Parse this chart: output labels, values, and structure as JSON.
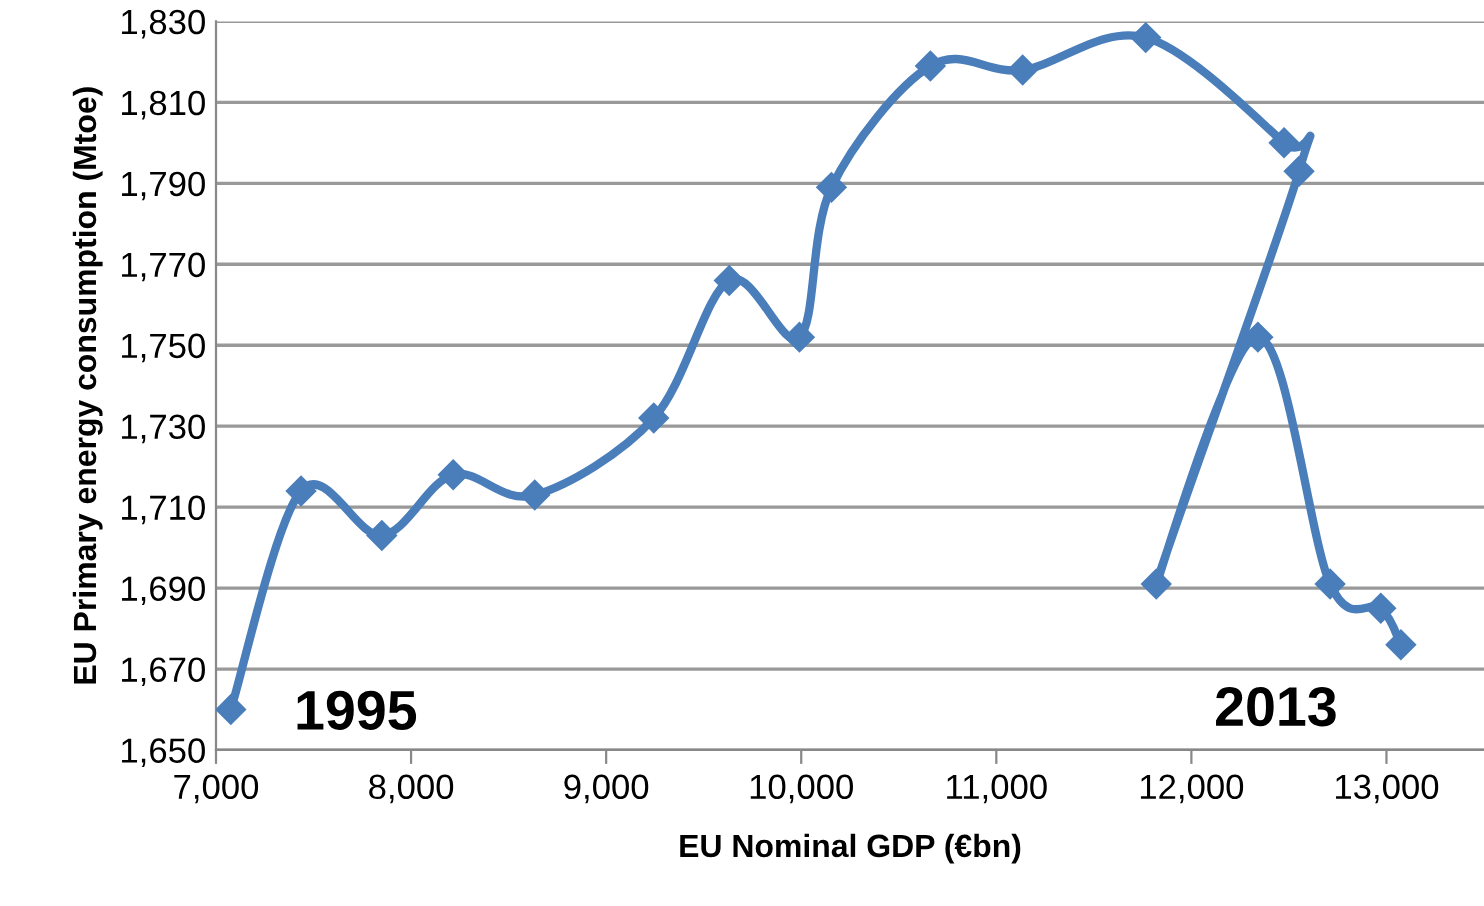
{
  "chart_data": {
    "type": "line",
    "xlabel": "EU Nominal GDP (€bn)",
    "ylabel": "EU Primary energy consumption (Mtoe)",
    "series": [
      {
        "color": "#4a7ebb",
        "x": [
          7076,
          7436,
          7850,
          8216,
          8634,
          9244,
          9631,
          9991,
          10155,
          10662,
          11135,
          11766,
          12475,
          12552,
          11820,
          12341,
          12711,
          12971,
          13074
        ],
        "values": [
          1660,
          1714,
          1703,
          1718,
          1713,
          1732,
          1766,
          1752,
          1789,
          1819,
          1818,
          1826,
          1800,
          1793,
          1691,
          1752,
          1691,
          1685,
          1676
        ]
      }
    ],
    "xlim": [
      7000,
      13500
    ],
    "xticks": [
      {
        "value": 7000,
        "label": "7,000"
      },
      {
        "value": 8000,
        "label": "8,000"
      },
      {
        "value": 9000,
        "label": "9,000"
      },
      {
        "value": 10000,
        "label": "10,000"
      },
      {
        "value": 11000,
        "label": "11,000"
      },
      {
        "value": 12000,
        "label": "12,000"
      },
      {
        "value": 13000,
        "label": "13,000"
      }
    ],
    "ylim": [
      1650,
      1830
    ],
    "yticks": [
      {
        "value": 1650,
        "label": "1,650"
      },
      {
        "value": 1670,
        "label": "1,670"
      },
      {
        "value": 1690,
        "label": "1,690"
      },
      {
        "value": 1710,
        "label": "1,710"
      },
      {
        "value": 1730,
        "label": "1,730"
      },
      {
        "value": 1750,
        "label": "1,750"
      },
      {
        "value": 1770,
        "label": "1,770"
      },
      {
        "value": 1790,
        "label": "1,790"
      },
      {
        "value": 1810,
        "label": "1,810"
      },
      {
        "value": 1830,
        "label": "1,830"
      }
    ],
    "grid": "y",
    "marker": "diamond",
    "line_style": "solid",
    "annotations": [
      {
        "text": "1995",
        "x": 7076,
        "y": 1660
      },
      {
        "text": "2013",
        "x": 13074,
        "y": 1676
      }
    ]
  }
}
